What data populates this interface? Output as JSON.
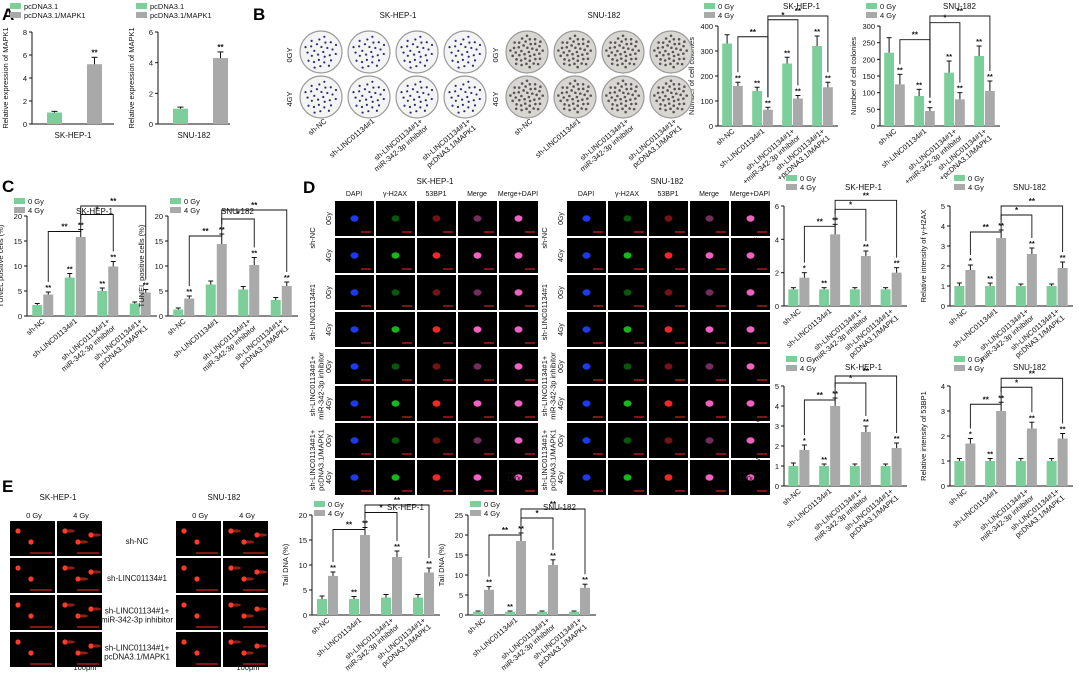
{
  "colors": {
    "c0": "#7ccf9a",
    "c1": "#a9a9a9",
    "axis": "#111111",
    "sig": "#111111",
    "gel": "#000000",
    "comet": "#ff3a2a",
    "cell_bg": "#000000",
    "dapi": "#1f3dff",
    "h2ax": "#15c21a",
    "bp1": "#ff2a2a",
    "merge": "#ff66cc",
    "plate": "#f4f4f4",
    "colony": "#2b2b7a"
  },
  "panels": {
    "A": "A",
    "B": "B",
    "C": "C",
    "D": "D",
    "E": "E"
  },
  "legend_A": [
    "pcDNA3.1",
    "pcDNA3.1/MAPK1"
  ],
  "legend_gy": [
    "0 Gy",
    "4 Gy"
  ],
  "legend_gy_B": [
    "0 Gy",
    "4 Gy"
  ],
  "clone_headers": {
    "sk": "SK-HEP-1",
    "snu": "SNU-182"
  },
  "clone_rows": [
    "0GY",
    "4GY"
  ],
  "clone_cols": [
    "sh-NC",
    "sh-LINC01134#1",
    "sh-LINC01134#1+\nmiR-342-3p inhibitor",
    "sh-LINC01134#1+\npcDNA3.1/MAPK1"
  ],
  "if_headers": {
    "sk": "SK-HEP-1",
    "snu": "SNU-182"
  },
  "if_cols": [
    "DAPI",
    "γ-H2AX",
    "53BP1",
    "Merge",
    "Merge+DAPI"
  ],
  "if_rows": [
    "0Gy",
    "4Gy",
    "0Gy",
    "4Gy",
    "0Gy",
    "4Gy",
    "0Gy",
    "4Gy"
  ],
  "if_groups": [
    "sh-NC",
    "sh-LINC01134#1",
    "sh-LINC01134#1+\nmiR-342-3p inhibitor",
    "sh-LINC01134#1+\npcDNA3.1/MAPK1"
  ],
  "scale": "100μm",
  "comet_headers": {
    "sk": "SK-HEP-1",
    "snu": "SNU-182"
  },
  "comet_cols": [
    "0 Gy",
    "4 Gy"
  ],
  "comet_rows": [
    "sh-NC",
    "sh-LINC01134#1",
    "sh-LINC01134#1+\nmiR-342-3p inhibitor",
    "sh-LINC01134#1+\npcDNA3.1/MAPK1"
  ],
  "groups": [
    "sh-NC",
    "sh-LINC01134#1",
    "sh-LINC01134#1+\nmiR-342-3p inhibitor",
    "sh-LINC01134#1+\npcDNA3.1/MAPK1"
  ],
  "groupsB": [
    "sh-NC",
    "sh-LINC01134#1",
    "sh-LINC01134#1+\n+miR-342-3p inhibitor",
    "sh-LINC01134#1+\n+pcDNA3.1/MAPK1"
  ],
  "chart_data": [
    {
      "id": "A1",
      "type": "bar",
      "title": "SK-HEP-1",
      "ylabel": "Relative expression of MAPK1",
      "ylim": [
        0,
        8
      ],
      "yticks": [
        0,
        2,
        4,
        6,
        8
      ],
      "series": [
        {
          "name": "pcDNA3.1",
          "values": [
            1.0
          ]
        },
        {
          "name": "pcDNA3.1/MAPK1",
          "values": [
            5.2
          ]
        }
      ],
      "err": [
        [
          0.1
        ],
        [
          0.6
        ]
      ],
      "marks": [
        [
          ""
        ],
        [
          "**"
        ]
      ]
    },
    {
      "id": "A2",
      "type": "bar",
      "title": "SNU-182",
      "ylabel": "Relative expression of MAPK1",
      "ylim": [
        0,
        6
      ],
      "yticks": [
        0,
        2,
        4,
        6
      ],
      "series": [
        {
          "name": "pcDNA3.1",
          "values": [
            1.0
          ]
        },
        {
          "name": "pcDNA3.1/MAPK1",
          "values": [
            4.3
          ]
        }
      ],
      "err": [
        [
          0.1
        ],
        [
          0.4
        ]
      ],
      "marks": [
        [
          ""
        ],
        [
          "**"
        ]
      ]
    },
    {
      "id": "B1",
      "type": "bar",
      "title": "SK-HEP-1",
      "ylabel": "Number of cell colonies",
      "ylim": [
        0,
        400
      ],
      "yticks": [
        0,
        100,
        200,
        300,
        400
      ],
      "series": [
        {
          "name": "0 Gy",
          "values": [
            330,
            140,
            250,
            320
          ]
        },
        {
          "name": "4 Gy",
          "values": [
            160,
            65,
            110,
            155
          ]
        }
      ],
      "err": [
        [
          35,
          15,
          25,
          40
        ],
        [
          15,
          10,
          12,
          20
        ]
      ],
      "marks": [
        [
          "",
          "**",
          "**",
          "**"
        ],
        [
          "**",
          "**",
          "**",
          "**"
        ]
      ],
      "brackets": [
        [
          0,
          1,
          "**"
        ],
        [
          1,
          2,
          "*"
        ],
        [
          1,
          3,
          "**"
        ]
      ]
    },
    {
      "id": "B2",
      "type": "bar",
      "title": "SNU-182",
      "ylabel": "Number of cell colonies",
      "ylim": [
        0,
        300
      ],
      "yticks": [
        0,
        50,
        100,
        150,
        200,
        250,
        300
      ],
      "series": [
        {
          "name": "0 Gy",
          "values": [
            220,
            90,
            160,
            210
          ]
        },
        {
          "name": "4 Gy",
          "values": [
            125,
            45,
            80,
            105
          ]
        }
      ],
      "err": [
        [
          45,
          20,
          35,
          30
        ],
        [
          30,
          10,
          20,
          30
        ]
      ],
      "marks": [
        [
          "",
          "**",
          "**",
          "**"
        ],
        [
          "**",
          "*",
          "**",
          "**"
        ]
      ],
      "brackets": [
        [
          0,
          1,
          "**"
        ],
        [
          1,
          2,
          "*"
        ],
        [
          1,
          3,
          "**"
        ]
      ]
    },
    {
      "id": "C1",
      "type": "bar",
      "title": "SK-HEP-1",
      "ylabel": "TUNEL positive cells (%)",
      "ylim": [
        0,
        20
      ],
      "yticks": [
        0,
        5,
        10,
        15,
        20
      ],
      "series": [
        {
          "name": "0 Gy",
          "values": [
            2.2,
            7.7,
            5.0,
            2.5
          ]
        },
        {
          "name": "4 Gy",
          "values": [
            4.3,
            15.8,
            9.9,
            4.7
          ]
        }
      ],
      "err": [
        [
          0.3,
          0.8,
          0.6,
          0.3
        ],
        [
          0.5,
          1.5,
          1.0,
          0.6
        ]
      ],
      "marks": [
        [
          "",
          "**",
          "**",
          ""
        ],
        [
          "**",
          "**",
          "**",
          "**"
        ]
      ],
      "brackets": [
        [
          0,
          1,
          "**"
        ],
        [
          1,
          2,
          "*"
        ],
        [
          1,
          3,
          "**"
        ]
      ]
    },
    {
      "id": "C2",
      "type": "bar",
      "title": "SNU-182",
      "ylabel": "TUNEL positive cells (%)",
      "ylim": [
        0,
        20
      ],
      "yticks": [
        0,
        5,
        10,
        15,
        20
      ],
      "series": [
        {
          "name": "0 Gy",
          "values": [
            1.3,
            6.3,
            5.3,
            3.2
          ]
        },
        {
          "name": "4 Gy",
          "values": [
            3.5,
            14.4,
            10.2,
            6.0
          ]
        }
      ],
      "err": [
        [
          0.3,
          0.7,
          0.6,
          0.5
        ],
        [
          0.5,
          2.0,
          1.5,
          0.8
        ]
      ],
      "marks": [
        [
          "",
          "",
          "",
          ""
        ],
        [
          "**",
          "**",
          "**",
          "**"
        ]
      ],
      "brackets": [
        [
          0,
          1,
          "**"
        ],
        [
          1,
          2,
          "*"
        ],
        [
          1,
          3,
          "**"
        ]
      ]
    },
    {
      "id": "D1",
      "type": "bar",
      "title": "SK-HEP-1",
      "ylabel": "Relative intensity of γ-H2AX",
      "ylim": [
        0,
        6
      ],
      "yticks": [
        0,
        2,
        4,
        6
      ],
      "series": [
        {
          "name": "0 Gy",
          "values": [
            1.0,
            1.0,
            1.0,
            1.0
          ]
        },
        {
          "name": "4 Gy",
          "values": [
            1.7,
            4.3,
            3.0,
            2.0
          ]
        }
      ],
      "err": [
        [
          0.1,
          0.1,
          0.1,
          0.1
        ],
        [
          0.3,
          0.6,
          0.3,
          0.3
        ]
      ],
      "marks": [
        [
          "",
          "**",
          "",
          ""
        ],
        [
          "*",
          "**",
          "**",
          "**"
        ]
      ],
      "brackets": [
        [
          0,
          1,
          "**"
        ],
        [
          1,
          2,
          "*"
        ],
        [
          1,
          3,
          "**"
        ]
      ]
    },
    {
      "id": "D2",
      "type": "bar",
      "title": "SNU-182",
      "ylabel": "Relative intensity of γ-H2AX",
      "ylim": [
        0,
        5
      ],
      "yticks": [
        0,
        1,
        2,
        3,
        4,
        5
      ],
      "series": [
        {
          "name": "0 Gy",
          "values": [
            1.0,
            1.0,
            1.0,
            1.0
          ]
        },
        {
          "name": "4 Gy",
          "values": [
            1.8,
            3.4,
            2.6,
            1.9
          ]
        }
      ],
      "err": [
        [
          0.15,
          0.15,
          0.1,
          0.1
        ],
        [
          0.25,
          0.4,
          0.3,
          0.3
        ]
      ],
      "marks": [
        [
          "",
          "**",
          "",
          ""
        ],
        [
          "*",
          "**",
          "**",
          "**"
        ]
      ],
      "brackets": [
        [
          0,
          1,
          "**"
        ],
        [
          1,
          2,
          "*"
        ],
        [
          1,
          3,
          "**"
        ]
      ]
    },
    {
      "id": "D3",
      "type": "bar",
      "title": "SK-HEP-1",
      "ylabel": "Relative intensity of 53BP1",
      "ylim": [
        0,
        5
      ],
      "yticks": [
        0,
        1,
        2,
        3,
        4,
        5
      ],
      "series": [
        {
          "name": "0 Gy",
          "values": [
            1.0,
            1.0,
            1.0,
            1.0
          ]
        },
        {
          "name": "4 Gy",
          "values": [
            1.8,
            4.0,
            2.7,
            1.9
          ]
        }
      ],
      "err": [
        [
          0.15,
          0.1,
          0.1,
          0.1
        ],
        [
          0.25,
          0.4,
          0.3,
          0.25
        ]
      ],
      "marks": [
        [
          "",
          "**",
          "",
          ""
        ],
        [
          "*",
          "**",
          "**",
          "**"
        ]
      ],
      "brackets": [
        [
          0,
          1,
          "**"
        ],
        [
          1,
          2,
          "*"
        ],
        [
          1,
          3,
          "**"
        ]
      ]
    },
    {
      "id": "D4",
      "type": "bar",
      "title": "SNU-182",
      "ylabel": "Relative intensity of 53BP1",
      "ylim": [
        0,
        4
      ],
      "yticks": [
        0,
        1,
        2,
        3,
        4
      ],
      "series": [
        {
          "name": "0 Gy",
          "values": [
            1.0,
            1.0,
            1.0,
            1.0
          ]
        },
        {
          "name": "4 Gy",
          "values": [
            1.7,
            3.0,
            2.3,
            1.9
          ]
        }
      ],
      "err": [
        [
          0.1,
          0.1,
          0.1,
          0.1
        ],
        [
          0.2,
          0.35,
          0.25,
          0.2
        ]
      ],
      "marks": [
        [
          "",
          "**",
          "",
          ""
        ],
        [
          "*",
          "**",
          "**",
          "**"
        ]
      ],
      "brackets": [
        [
          0,
          1,
          "**"
        ],
        [
          1,
          2,
          "*"
        ],
        [
          1,
          3,
          "**"
        ]
      ]
    },
    {
      "id": "E1",
      "type": "bar",
      "title": "SK-HEP-1",
      "ylabel": "Tail DNA (%)",
      "ylim": [
        0,
        20
      ],
      "yticks": [
        0,
        5,
        10,
        15,
        20
      ],
      "series": [
        {
          "name": "0 Gy",
          "values": [
            3.2,
            3.2,
            3.5,
            3.5
          ]
        },
        {
          "name": "4 Gy",
          "values": [
            7.8,
            16.0,
            11.6,
            8.5
          ]
        }
      ],
      "err": [
        [
          0.6,
          0.5,
          0.6,
          0.6
        ],
        [
          0.8,
          1.5,
          1.2,
          0.9
        ]
      ],
      "marks": [
        [
          "",
          "**",
          "",
          ""
        ],
        [
          "**",
          "**",
          "**",
          "**"
        ]
      ],
      "brackets": [
        [
          0,
          1,
          "**"
        ],
        [
          1,
          2,
          "*"
        ],
        [
          1,
          3,
          "**"
        ]
      ]
    },
    {
      "id": "E2",
      "type": "bar",
      "title": "SNU-182",
      "ylabel": "Tail DNA (%)",
      "ylim": [
        0,
        25
      ],
      "yticks": [
        0,
        5,
        10,
        15,
        20,
        25
      ],
      "series": [
        {
          "name": "0 Gy",
          "values": [
            0.8,
            0.8,
            0.8,
            0.8
          ]
        },
        {
          "name": "4 Gy",
          "values": [
            6.3,
            18.5,
            12.5,
            6.8
          ]
        }
      ],
      "err": [
        [
          0.2,
          0.2,
          0.2,
          0.2
        ],
        [
          0.8,
          2.0,
          1.3,
          0.9
        ]
      ],
      "marks": [
        [
          "",
          "**",
          "",
          ""
        ],
        [
          "**",
          "**",
          "**",
          "**"
        ]
      ],
      "brackets": [
        [
          0,
          1,
          "**"
        ],
        [
          1,
          2,
          "*"
        ],
        [
          1,
          3,
          "**"
        ]
      ]
    }
  ]
}
